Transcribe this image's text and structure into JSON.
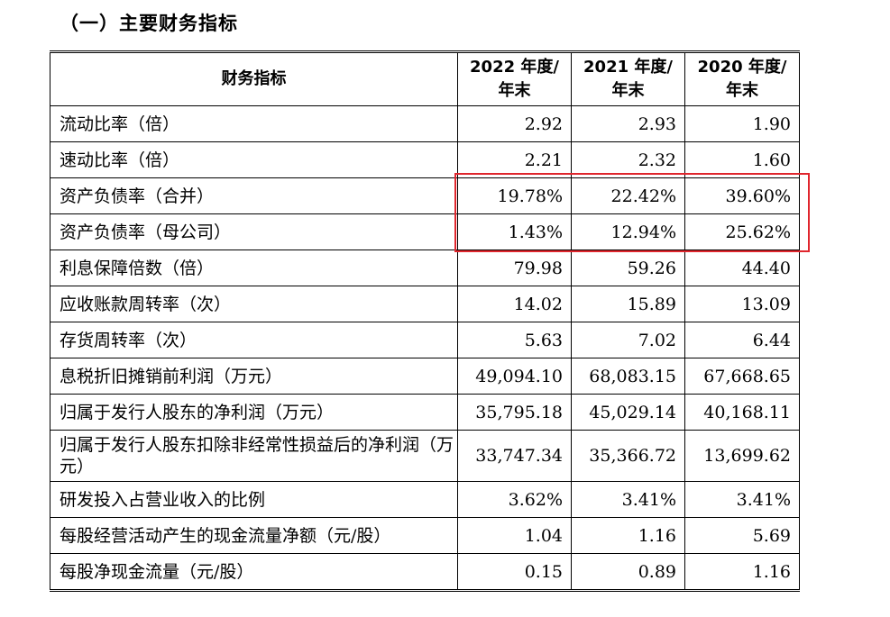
{
  "heading": "（一）主要财务指标",
  "table": {
    "header": {
      "label": "财务指标",
      "years": [
        "2022 年度/\n年末",
        "2021 年度/\n年末",
        "2020 年度/\n年末"
      ]
    },
    "rows": [
      {
        "label": "流动比率（倍）",
        "values": [
          "2.92",
          "2.93",
          "1.90"
        ]
      },
      {
        "label": "速动比率（倍）",
        "values": [
          "2.21",
          "2.32",
          "1.60"
        ]
      },
      {
        "label": "资产负债率（合并）",
        "values": [
          "19.78%",
          "22.42%",
          "39.60%"
        ]
      },
      {
        "label": "资产负债率（母公司）",
        "values": [
          "1.43%",
          "12.94%",
          "25.62%"
        ]
      },
      {
        "label": "利息保障倍数（倍）",
        "values": [
          "79.98",
          "59.26",
          "44.40"
        ]
      },
      {
        "label": "应收账款周转率（次）",
        "values": [
          "14.02",
          "15.89",
          "13.09"
        ]
      },
      {
        "label": "存货周转率（次）",
        "values": [
          "5.63",
          "7.02",
          "6.44"
        ]
      },
      {
        "label": "息税折旧摊销前利润（万元）",
        "values": [
          "49,094.10",
          "68,083.15",
          "67,668.65"
        ]
      },
      {
        "label": "归属于发行人股东的净利润（万元）",
        "values": [
          "35,795.18",
          "45,029.14",
          "40,168.11"
        ]
      },
      {
        "label": "归属于发行人股东扣除非经常性损益后的净利润（万元）",
        "values": [
          "33,747.34",
          "35,366.72",
          "13,699.62"
        ]
      },
      {
        "label": "研发投入占营业收入的比例",
        "values": [
          "3.62%",
          "3.41%",
          "3.41%"
        ]
      },
      {
        "label": "每股经营活动产生的现金流量净额（元/股）",
        "values": [
          "1.04",
          "1.16",
          "5.69"
        ]
      },
      {
        "label": "每股净现金流量（元/股）",
        "values": [
          "0.15",
          "0.89",
          "1.16"
        ]
      }
    ]
  },
  "highlight_color": "#e0262d"
}
